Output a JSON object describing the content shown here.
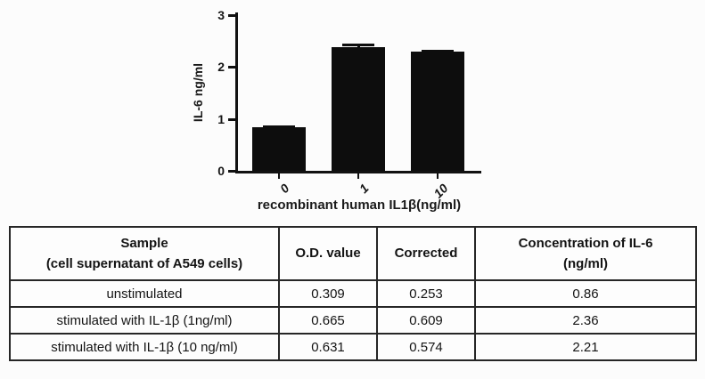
{
  "page": {
    "background": "#fcfcfc",
    "ink": "#111111"
  },
  "chart_data": {
    "type": "bar",
    "title": "",
    "xlabel": "recombinant human IL1β(ng/ml)",
    "ylabel": "IL-6 ng/ml",
    "categories": [
      "0",
      "1",
      "10"
    ],
    "values": [
      0.84,
      2.38,
      2.29
    ],
    "errors": [
      0.04,
      0.07,
      0.04
    ],
    "ylim": [
      0,
      3
    ],
    "yticks": [
      0,
      1,
      2,
      3
    ],
    "grid": false,
    "legend": "none",
    "bar_color": "#0d0d0d"
  },
  "table": {
    "headers": [
      [
        "Sample",
        "(cell supernatant of A549 cells)"
      ],
      [
        "O.D. value"
      ],
      [
        "Corrected"
      ],
      [
        "Concentration of IL-6",
        "(ng/ml)"
      ]
    ],
    "rows": [
      [
        "unstimulated",
        "0.309",
        "0.253",
        "0.86"
      ],
      [
        "stimulated with IL-1β (1ng/ml)",
        "0.665",
        "0.609",
        "2.36"
      ],
      [
        "stimulated with IL-1β (10 ng/ml)",
        "0.631",
        "0.574",
        "2.21"
      ]
    ]
  }
}
